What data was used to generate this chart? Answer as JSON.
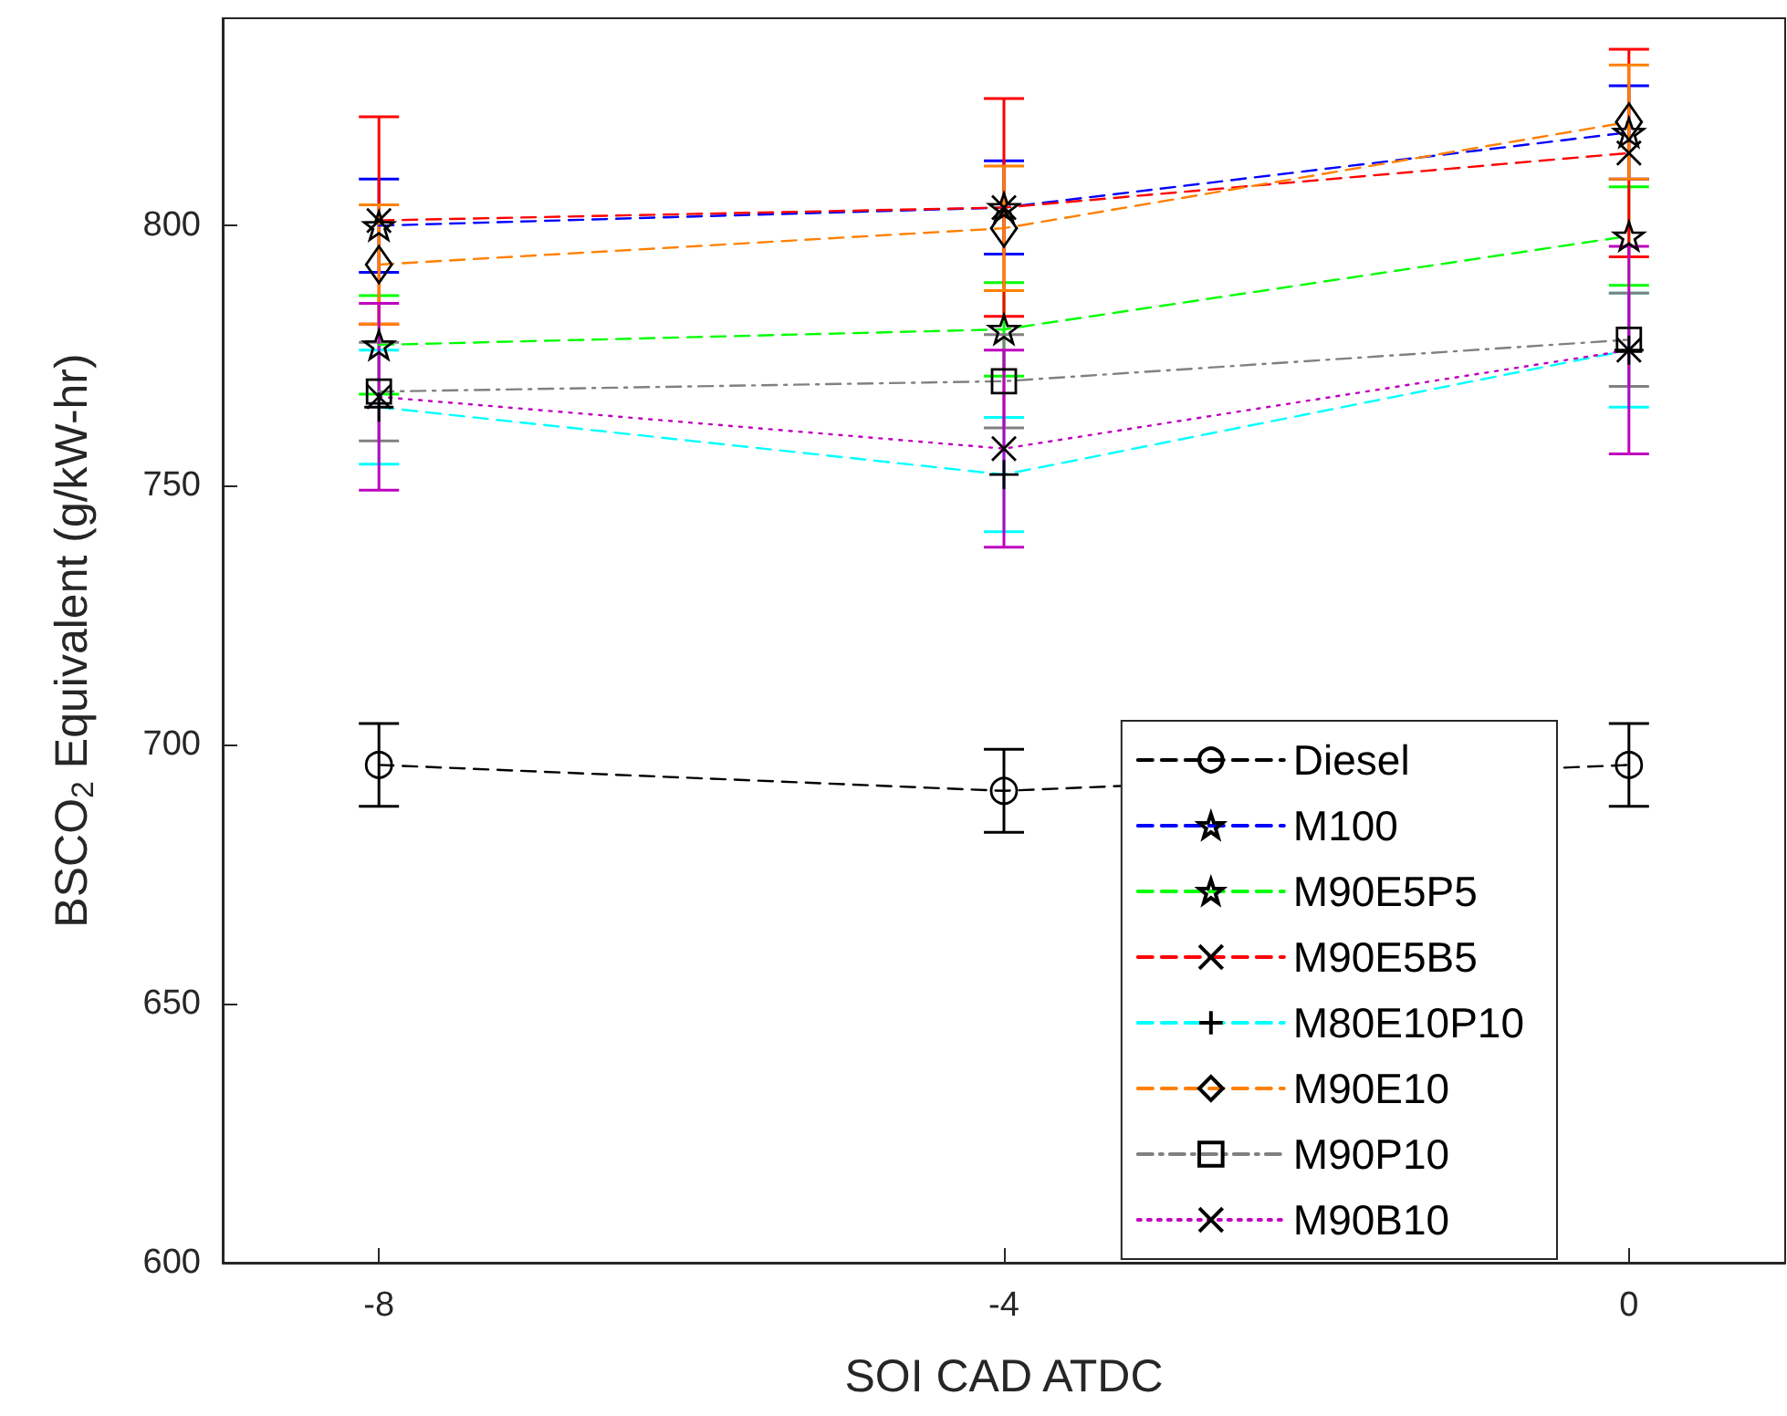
{
  "chart_data": {
    "type": "line",
    "xlabel": "SOI CAD ATDC",
    "ylabel": "BSCO$_{2}$ Equivalent (g/kW-hr)",
    "x": [
      -8,
      -4,
      0
    ],
    "xlim": [
      -9,
      1
    ],
    "xticks": [
      -8,
      -4,
      0
    ],
    "ylim": [
      600,
      840
    ],
    "yticks": [
      600,
      650,
      700,
      750,
      800
    ],
    "grid": false,
    "legend": "bottom right",
    "series": [
      {
        "name": "Diesel",
        "color": "#000000",
        "marker": "circle",
        "line_style": "dashed",
        "values": [
          696,
          691,
          696
        ],
        "errors": [
          8,
          8,
          8
        ]
      },
      {
        "name": "M100",
        "color": "#0000ff",
        "marker": "star",
        "line_style": "dashed",
        "values": [
          800,
          803.5,
          818
        ],
        "errors": [
          9,
          9,
          9
        ]
      },
      {
        "name": "M90E5P5",
        "color": "#00ff00",
        "marker": "star",
        "line_style": "dashed",
        "values": [
          777,
          780,
          798
        ],
        "errors": [
          9.5,
          9,
          9.5
        ]
      },
      {
        "name": "M90E5B5",
        "color": "#ff0000",
        "marker": "cross",
        "line_style": "dashed",
        "values": [
          801,
          803.5,
          814
        ],
        "errors": [
          20,
          21,
          20
        ]
      },
      {
        "name": "M80E10P10",
        "color": "#00ffff",
        "marker": "plus",
        "line_style": "dashed",
        "values": [
          765,
          752,
          776
        ],
        "errors": [
          11,
          11,
          11
        ]
      },
      {
        "name": "M90E10",
        "color": "#ff8000",
        "marker": "diamond",
        "line_style": "dashed",
        "values": [
          792.5,
          799.5,
          820
        ],
        "errors": [
          11.5,
          12,
          11
        ]
      },
      {
        "name": "M90P10",
        "color": "#808080",
        "marker": "square",
        "line_style": "dashdot",
        "values": [
          768,
          770,
          778
        ],
        "errors": [
          9.5,
          9,
          9
        ]
      },
      {
        "name": "M90B10",
        "color": "#bf00bf",
        "marker": "cross",
        "line_style": "dotted",
        "values": [
          767,
          757,
          776
        ],
        "errors": [
          18,
          19,
          20
        ]
      }
    ]
  }
}
